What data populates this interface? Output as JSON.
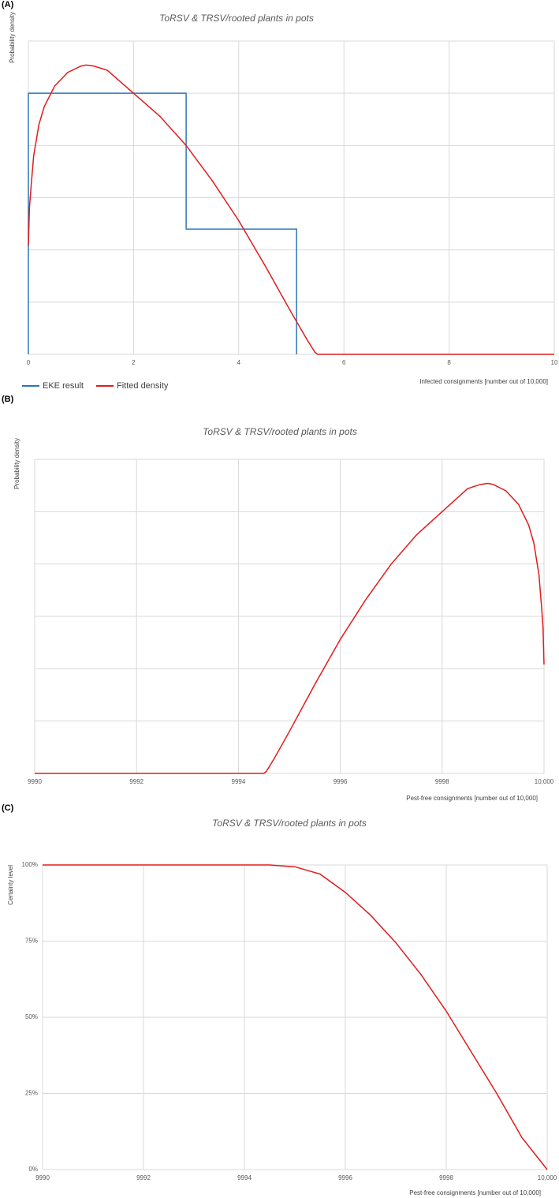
{
  "chart_data": [
    {
      "type": "line",
      "panel_label": "(A)",
      "title": "ToRSV & TRSV/rooted plants in pots",
      "x_label": "Infected consignments [number out of 10,000]",
      "y_label": "Probability density",
      "xlim": [
        0,
        10
      ],
      "xticks": [
        0,
        2,
        4,
        6,
        8,
        10
      ],
      "ylim": [
        0,
        0.3
      ],
      "yticks": [
        0,
        0.05,
        0.1,
        0.15,
        0.2,
        0.25,
        0.3
      ],
      "show_ytick_labels": false,
      "grid": true,
      "legend": "bottom-left",
      "series": [
        {
          "name": "EKE result",
          "color": "#2e75b6",
          "x": [
            0,
            0,
            3,
            3,
            5.1,
            5.1
          ],
          "values": [
            0,
            0.25,
            0.25,
            0.12,
            0.12,
            0
          ]
        },
        {
          "name": "Fitted density",
          "color": "#e31a1c",
          "x": [
            0,
            0.02,
            0.05,
            0.1,
            0.2,
            0.3,
            0.5,
            0.75,
            1,
            1.1,
            1.25,
            1.5,
            2,
            2.5,
            3,
            3.5,
            4,
            4.5,
            5,
            5.3,
            5.45,
            5.5,
            6,
            7,
            8,
            9,
            10
          ],
          "values": [
            0.104,
            0.14,
            0.16,
            0.19,
            0.22,
            0.237,
            0.257,
            0.27,
            0.276,
            0.277,
            0.276,
            0.272,
            0.25,
            0.228,
            0.2,
            0.166,
            0.128,
            0.085,
            0.04,
            0.014,
            0.002,
            0,
            0,
            0,
            0,
            0,
            0
          ]
        }
      ]
    },
    {
      "type": "line",
      "panel_label": "(B)",
      "title": "ToRSV & TRSV/rooted plants in pots",
      "x_label": "Pest-free consignments [number out of 10,000]",
      "y_label": "Probability density",
      "xlim": [
        9990,
        10000
      ],
      "xticks": [
        9990,
        9992,
        9994,
        9996,
        9998,
        {
          "value": 10000,
          "label": "10,000"
        }
      ],
      "ylim": [
        0,
        0.3
      ],
      "yticks": [
        0,
        0.05,
        0.1,
        0.15,
        0.2,
        0.25,
        0.3
      ],
      "show_ytick_labels": false,
      "grid": true,
      "series": [
        {
          "color": "#e31a1c",
          "x": [
            9990,
            9991,
            9992,
            9993,
            9994,
            9994.5,
            9994.55,
            9994.7,
            9995,
            9995.5,
            9996,
            9996.5,
            9997,
            9997.5,
            9998,
            9998.5,
            9998.75,
            9998.9,
            9999,
            9999.25,
            9999.5,
            9999.7,
            9999.8,
            9999.9,
            9999.95,
            9999.98,
            10000
          ],
          "values": [
            0,
            0,
            0,
            0,
            0,
            0,
            0.002,
            0.014,
            0.04,
            0.085,
            0.128,
            0.166,
            0.2,
            0.228,
            0.25,
            0.272,
            0.276,
            0.277,
            0.276,
            0.27,
            0.257,
            0.237,
            0.22,
            0.19,
            0.16,
            0.14,
            0.104
          ]
        }
      ]
    },
    {
      "type": "line",
      "panel_label": "(C)",
      "title": "ToRSV & TRSV/rooted plants in pots",
      "x_label": "Pest-free consignments [number out of 10,000]",
      "y_label": "Certainty level",
      "xlim": [
        9990,
        10000
      ],
      "xticks": [
        9990,
        9992,
        9994,
        9996,
        9998,
        {
          "value": 10000,
          "label": "10,000"
        }
      ],
      "ylim": [
        0,
        100
      ],
      "yticks": [
        {
          "value": 0,
          "label": "0%"
        },
        {
          "value": 25,
          "label": "25%"
        },
        {
          "value": 50,
          "label": "50%"
        },
        {
          "value": 75,
          "label": "75%"
        },
        {
          "value": 100,
          "label": "100%"
        }
      ],
      "show_ytick_labels": true,
      "grid": true,
      "series": [
        {
          "color": "#e31a1c",
          "x": [
            9990,
            9991,
            9992,
            9993,
            9994,
            9994.5,
            9995,
            9995.5,
            9996,
            9996.5,
            9997,
            9997.5,
            9998,
            9998.5,
            9999,
            9999.5,
            10000
          ],
          "values": [
            100,
            100,
            100,
            100,
            100,
            100,
            99.4,
            97,
            91,
            83.5,
            74.5,
            64,
            52,
            38.5,
            25,
            10.5,
            0
          ]
        }
      ]
    }
  ]
}
